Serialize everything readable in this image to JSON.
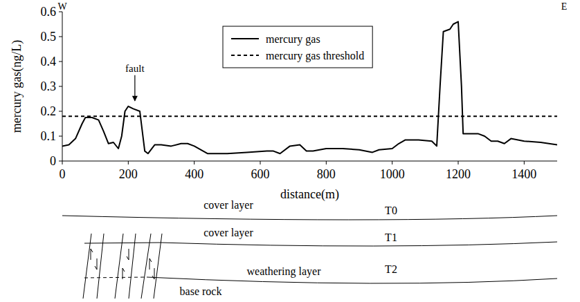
{
  "chart_data": {
    "type": "line",
    "x_label": "distance(m)",
    "y_label": "mercury gas(ng/L)",
    "xlim": [
      0,
      1500
    ],
    "ylim": [
      0,
      0.6
    ],
    "xticks": [
      0,
      200,
      400,
      600,
      800,
      1000,
      1200,
      1400
    ],
    "yticks": [
      0,
      0.1,
      0.2,
      0.3,
      0.4,
      0.5,
      0.6
    ],
    "grid": false,
    "legend": "top",
    "annotations": [
      {
        "text": "fault",
        "x": 220,
        "y": 0.22
      }
    ],
    "series": [
      {
        "name": "mercury gas",
        "color": "#000000",
        "line_style": "solid",
        "x": [
          0,
          20,
          40,
          60,
          70,
          90,
          110,
          125,
          140,
          155,
          170,
          180,
          190,
          200,
          215,
          235,
          250,
          260,
          280,
          300,
          330,
          360,
          380,
          400,
          440,
          500,
          560,
          620,
          640,
          660,
          690,
          720,
          740,
          760,
          800,
          850,
          900,
          940,
          960,
          1000,
          1020,
          1040,
          1080,
          1120,
          1135,
          1145,
          1155,
          1175,
          1185,
          1200,
          1210,
          1215,
          1260,
          1280,
          1300,
          1320,
          1340,
          1360,
          1400,
          1450,
          1500
        ],
        "values": [
          0.06,
          0.065,
          0.09,
          0.15,
          0.175,
          0.175,
          0.165,
          0.12,
          0.07,
          0.075,
          0.05,
          0.1,
          0.2,
          0.22,
          0.21,
          0.2,
          0.04,
          0.03,
          0.065,
          0.065,
          0.06,
          0.07,
          0.07,
          0.06,
          0.03,
          0.03,
          0.035,
          0.04,
          0.04,
          0.03,
          0.06,
          0.065,
          0.04,
          0.04,
          0.05,
          0.05,
          0.045,
          0.035,
          0.045,
          0.05,
          0.07,
          0.085,
          0.085,
          0.08,
          0.06,
          0.3,
          0.52,
          0.53,
          0.55,
          0.56,
          0.3,
          0.11,
          0.11,
          0.1,
          0.08,
          0.08,
          0.07,
          0.09,
          0.08,
          0.075,
          0.065
        ]
      },
      {
        "name": "mercury gas threshold",
        "color": "#000000",
        "line_style": "dashed",
        "x": [
          0,
          1500
        ],
        "values": [
          0.18,
          0.18
        ]
      }
    ]
  },
  "section": {
    "west": "W",
    "east": "E",
    "layers": [
      {
        "label": "cover layer",
        "horizon": "T0"
      },
      {
        "label": "cover layer",
        "horizon": "T1"
      },
      {
        "label": "weathering layer",
        "horizon": "T2"
      }
    ],
    "base": "base rock"
  }
}
